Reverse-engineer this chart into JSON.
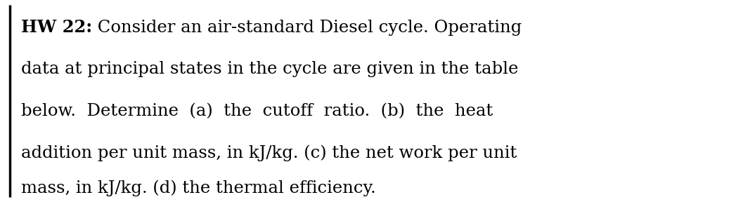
{
  "line1_bold": "HW 22:",
  "line1_normal": " Consider an air-standard Diesel cycle. Operating",
  "line2": "data at principal states in the cycle are given in the table",
  "line3": "below.  Determine  (a)  the  cutoff  ratio.  (b)  the  heat",
  "line4": "addition per unit mass, in kJ/kg. (c) the net work per unit",
  "line5": "mass, in kJ/kg. (d) the thermal efficiency.",
  "background_color": "#ffffff",
  "text_color": "#000000",
  "border_color": "#000000",
  "font_size": 17.5,
  "fig_width": 10.4,
  "fig_height": 2.88,
  "dpi": 100
}
